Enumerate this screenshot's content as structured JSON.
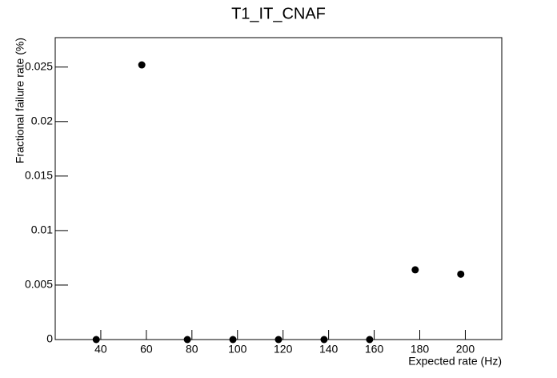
{
  "chart_data": {
    "type": "scatter",
    "title": "T1_IT_CNAF",
    "x_label": "Expected rate (Hz)",
    "y_label": "Fractional failure rate (%)",
    "x": [
      38,
      58,
      78,
      98,
      118,
      138,
      158,
      178,
      198
    ],
    "values": [
      0,
      0.0252,
      0,
      0,
      0,
      0,
      0,
      0.0064,
      0.006
    ],
    "color": "#000000",
    "xlim": [
      20,
      216
    ],
    "ylim": [
      0,
      0.0277
    ],
    "xticks": [
      40,
      60,
      80,
      100,
      120,
      140,
      160,
      180,
      200
    ],
    "yticks": [
      0,
      0.005,
      0.01,
      0.015,
      0.02,
      0.025
    ]
  }
}
